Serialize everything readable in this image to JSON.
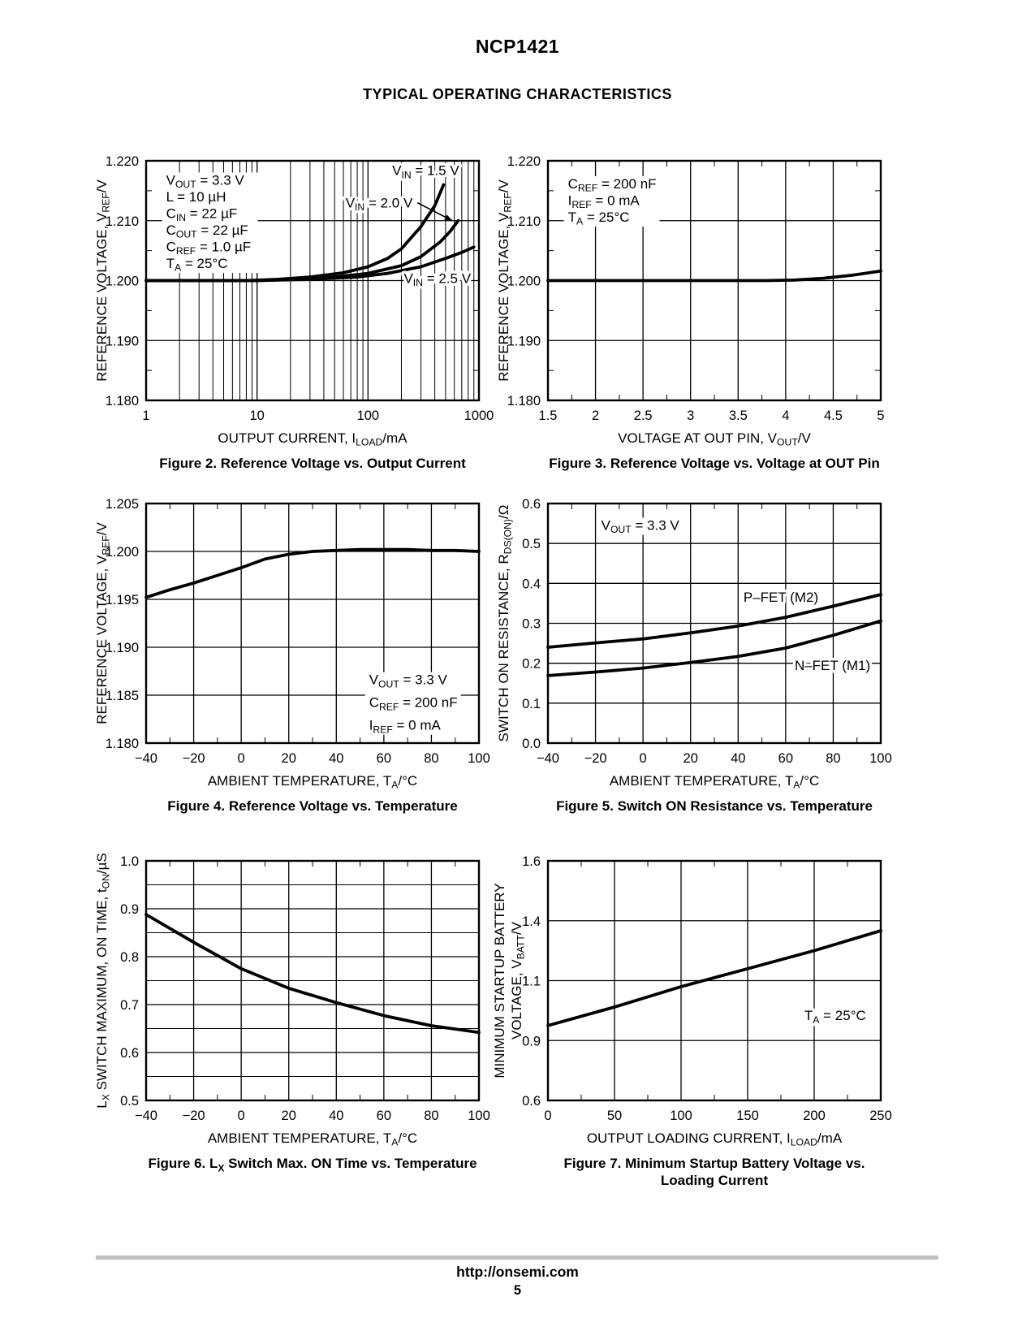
{
  "page": {
    "title": "NCP1421",
    "section_title": "TYPICAL OPERATING CHARACTERISTICS",
    "footer": {
      "url": "http://onsemi.com",
      "page_number": "5"
    }
  },
  "colors": {
    "ink": "#000000",
    "footer_bar": "#c0c0c0"
  },
  "chart_data": [
    {
      "id": "figure-2",
      "type": "line",
      "caption": "Figure 2. Reference Voltage vs. Output Current",
      "xlabel": "OUTPUT CURRENT, I~LOAD~/mA",
      "ylabel": [
        "REFERENCE VOLTAGE, V~REF~/V"
      ],
      "x_scale": "log",
      "x_ticks": [
        1,
        10,
        100,
        1000
      ],
      "x_tick_labels": [
        "1",
        "10",
        "100",
        "1000"
      ],
      "x_grid_minor": [
        2,
        3,
        4,
        5,
        6,
        7,
        8,
        9,
        20,
        30,
        40,
        50,
        60,
        70,
        80,
        90,
        200,
        300,
        400,
        500,
        600,
        700,
        800,
        900
      ],
      "y_ticks": [
        1.18,
        1.19,
        1.2,
        1.21,
        1.22
      ],
      "y_tick_labels": [
        "1.180",
        "1.190",
        "1.200",
        "1.210",
        "1.220"
      ],
      "y_minor_ticks": [
        1.185,
        1.195,
        1.205,
        1.215
      ],
      "annotation": {
        "x": 0.06,
        "y": 0.1,
        "line_h": 20.5,
        "lines": [
          "V~OUT~ = 3.3 V",
          "L = 10 µH",
          "C~IN~ = 22 µF",
          "C~OUT~ = 22 µF",
          "C~REF~ = 1.0 µF",
          "T~A~ = 25°C"
        ]
      },
      "series": [
        {
          "name": "VIN = 1.5 V",
          "points": [
            [
              1,
              1.2
            ],
            [
              8,
              1.2
            ],
            [
              15,
              1.2002
            ],
            [
              30,
              1.2006
            ],
            [
              60,
              1.2013
            ],
            [
              100,
              1.2023
            ],
            [
              150,
              1.2037
            ],
            [
              200,
              1.2053
            ],
            [
              300,
              1.209
            ],
            [
              400,
              1.2125
            ],
            [
              480,
              1.216
            ]
          ]
        },
        {
          "name": "VIN = 2.0 V",
          "points": [
            [
              1,
              1.2
            ],
            [
              10,
              1.2
            ],
            [
              20,
              1.2002
            ],
            [
              50,
              1.2006
            ],
            [
              100,
              1.2012
            ],
            [
              200,
              1.2025
            ],
            [
              300,
              1.204
            ],
            [
              450,
              1.2065
            ],
            [
              550,
              1.2082
            ],
            [
              650,
              1.21
            ]
          ]
        },
        {
          "name": "VIN = 2.5 V",
          "points": [
            [
              1,
              1.2
            ],
            [
              10,
              1.2
            ],
            [
              30,
              1.2002
            ],
            [
              80,
              1.2006
            ],
            [
              150,
              1.2012
            ],
            [
              300,
              1.2023
            ],
            [
              500,
              1.2037
            ],
            [
              700,
              1.2047
            ],
            [
              900,
              1.2056
            ]
          ]
        }
      ],
      "labels": [
        {
          "text": "V~IN~ = 1.5 V",
          "x": 0.84,
          "y": 0.06
        },
        {
          "text": "V~IN~ = 2.0 V",
          "x": 0.7,
          "y": 0.195,
          "arrow": [
            0.815,
            0.175,
            0.92,
            0.25
          ]
        },
        {
          "text": "V~IN~ = 2.5 V",
          "x": 0.875,
          "y": 0.51
        }
      ]
    },
    {
      "id": "figure-3",
      "type": "line",
      "caption": "Figure 3. Reference Voltage vs. Voltage at OUT Pin",
      "xlabel": "VOLTAGE AT OUT PIN, V~OUT~/V",
      "ylabel": [
        "REFERENCE VOLTAGE, V~REF~/V"
      ],
      "x_ticks": [
        1.5,
        2,
        2.5,
        3,
        3.5,
        4,
        4.5,
        5
      ],
      "x_tick_labels": [
        "1.5",
        "2",
        "2.5",
        "3",
        "3.5",
        "4",
        "4.5",
        "5"
      ],
      "x_minor_ticks": [
        1.75,
        2.25,
        2.75,
        3.25,
        3.75,
        4.25,
        4.75
      ],
      "y_ticks": [
        1.18,
        1.19,
        1.2,
        1.21,
        1.22
      ],
      "y_tick_labels": [
        "1.180",
        "1.190",
        "1.200",
        "1.210",
        "1.220"
      ],
      "y_minor_ticks": [
        1.185,
        1.195,
        1.205,
        1.215
      ],
      "annotation": {
        "x": 0.06,
        "y": 0.115,
        "line_h": 20.5,
        "lines": [
          "C~REF~ = 200 nF",
          "I~REF~ = 0 mA",
          "T~A~ = 25°C"
        ]
      },
      "series": [
        {
          "name": "VREF",
          "points": [
            [
              1.5,
              1.2
            ],
            [
              3.8,
              1.2
            ],
            [
              4.1,
              1.2001
            ],
            [
              4.4,
              1.2004
            ],
            [
              4.7,
              1.2009
            ],
            [
              5,
              1.2016
            ]
          ]
        }
      ],
      "labels": []
    },
    {
      "id": "figure-4",
      "type": "line",
      "caption": "Figure 4. Reference Voltage vs. Temperature",
      "xlabel": "AMBIENT TEMPERATURE, T~A~/°C",
      "ylabel": [
        "REFERENCE VOLTAGE, V~REF~/V"
      ],
      "x_ticks": [
        -40,
        -20,
        0,
        20,
        40,
        60,
        80,
        100
      ],
      "x_tick_labels": [
        "−40",
        "−20",
        "0",
        "20",
        "40",
        "60",
        "80",
        "100"
      ],
      "x_minor_ticks": [
        -30,
        -10,
        10,
        30,
        50,
        70,
        90
      ],
      "y_ticks": [
        1.18,
        1.185,
        1.19,
        1.195,
        1.2,
        1.205
      ],
      "y_tick_labels": [
        "1.180",
        "1.185",
        "1.190",
        "1.195",
        "1.200",
        "1.205"
      ],
      "annotation": {
        "x": 0.67,
        "y": 0.755,
        "line_h": 28,
        "lines": [
          "V~OUT~ = 3.3 V",
          "C~REF~ = 200 nF",
          "I~REF~ = 0 mA"
        ]
      },
      "series": [
        {
          "name": "VREF",
          "points": [
            [
              -40,
              1.1952
            ],
            [
              -30,
              1.196
            ],
            [
              -20,
              1.1967
            ],
            [
              -10,
              1.1975
            ],
            [
              0,
              1.1983
            ],
            [
              10,
              1.1992
            ],
            [
              20,
              1.1997
            ],
            [
              30,
              1.2
            ],
            [
              40,
              1.2001
            ],
            [
              50,
              1.2002
            ],
            [
              60,
              1.2002
            ],
            [
              70,
              1.2002
            ],
            [
              80,
              1.2001
            ],
            [
              90,
              1.2001
            ],
            [
              100,
              1.2
            ]
          ]
        }
      ],
      "labels": []
    },
    {
      "id": "figure-5",
      "type": "line",
      "caption": "Figure 5. Switch ON Resistance vs. Temperature",
      "xlabel": "AMBIENT TEMPERATURE, T~A~/°C",
      "ylabel": [
        "SWITCH ON RESISTANCE, R~DS(ON)~/Ω"
      ],
      "x_ticks": [
        -40,
        -20,
        0,
        20,
        40,
        60,
        80,
        100
      ],
      "x_tick_labels": [
        "−40",
        "−20",
        "0",
        "20",
        "40",
        "60",
        "80",
        "100"
      ],
      "x_minor_ticks": [
        -30,
        -10,
        10,
        30,
        50,
        70,
        90
      ],
      "y_ticks": [
        0.0,
        0.1,
        0.2,
        0.3,
        0.4,
        0.5,
        0.6
      ],
      "y_tick_labels": [
        "0.0",
        "0.1",
        "0.2",
        "0.3",
        "0.4",
        "0.5",
        "0.6"
      ],
      "annotation": {
        "x": 0.16,
        "y": 0.11,
        "line_h": 20.5,
        "lines": [
          "V~OUT~ = 3.3 V"
        ]
      },
      "series": [
        {
          "name": "P-FET (M2)",
          "points": [
            [
              -40,
              0.24
            ],
            [
              -20,
              0.251
            ],
            [
              0,
              0.261
            ],
            [
              20,
              0.276
            ],
            [
              40,
              0.293
            ],
            [
              60,
              0.315
            ],
            [
              80,
              0.343
            ],
            [
              100,
              0.372
            ]
          ]
        },
        {
          "name": "N-FET (M1)",
          "points": [
            [
              -40,
              0.169
            ],
            [
              -20,
              0.178
            ],
            [
              0,
              0.188
            ],
            [
              20,
              0.202
            ],
            [
              40,
              0.217
            ],
            [
              60,
              0.238
            ],
            [
              80,
              0.27
            ],
            [
              100,
              0.306
            ]
          ]
        }
      ],
      "labels": [
        {
          "text": "P–FET (M2)",
          "x": 0.7,
          "y": 0.41
        },
        {
          "text": "N–FET (M1)",
          "x": 0.855,
          "y": 0.695
        }
      ]
    },
    {
      "id": "figure-6",
      "type": "line",
      "caption": "Figure 6. L~X~ Switch Max. ON Time vs. Temperature",
      "xlabel": "AMBIENT TEMPERATURE, T~A~/°C",
      "ylabel": [
        "L~X~ SWITCH MAXIMUM, ON TIME, t~ON~/µS"
      ],
      "x_ticks": [
        -40,
        -20,
        0,
        20,
        40,
        60,
        80,
        100
      ],
      "x_tick_labels": [
        "−40",
        "−20",
        "0",
        "20",
        "40",
        "60",
        "80",
        "100"
      ],
      "x_minor_ticks": [
        -30,
        -10,
        10,
        30,
        50,
        70,
        90
      ],
      "y_ticks": [
        0.5,
        0.6,
        0.7,
        0.8,
        0.9,
        1.0
      ],
      "y_tick_labels": [
        "0.5",
        "0.6",
        "0.7",
        "0.8",
        "0.9",
        "1.0"
      ],
      "y_grid_minor": [
        0.55,
        0.65,
        0.75,
        0.85,
        0.95
      ],
      "series": [
        {
          "name": "tON max",
          "points": [
            [
              -40,
              0.888
            ],
            [
              -20,
              0.83
            ],
            [
              0,
              0.775
            ],
            [
              20,
              0.734
            ],
            [
              40,
              0.704
            ],
            [
              60,
              0.677
            ],
            [
              80,
              0.656
            ],
            [
              100,
              0.642
            ]
          ]
        }
      ],
      "labels": []
    },
    {
      "id": "figure-7",
      "type": "line",
      "caption": "Figure 7. Minimum Startup Battery Voltage vs.\nLoading Current",
      "xlabel": "OUTPUT LOADING CURRENT, I~LOAD~/mA",
      "ylabel": [
        "MINIMUM STARTUP BATTERY",
        "VOLTAGE, V~BATT~/V"
      ],
      "x_ticks": [
        0,
        50,
        100,
        150,
        200,
        250
      ],
      "x_tick_labels": [
        "0",
        "50",
        "100",
        "150",
        "200",
        "250"
      ],
      "x_minor_ticks": [
        25,
        75,
        125,
        175,
        225
      ],
      "y_ticks": [
        0.6,
        0.9,
        1.1,
        1.4,
        1.6
      ],
      "y_tick_labels": [
        "0.6",
        "0.9",
        "1.1",
        "1.4",
        "1.6"
      ],
      "series": [
        {
          "name": "VBATT min",
          "points": [
            [
              0,
              0.95
            ],
            [
              50,
              1.012
            ],
            [
              100,
              1.08
            ],
            [
              150,
              1.16
            ],
            [
              200,
              1.25
            ],
            [
              250,
              1.35
            ]
          ]
        }
      ],
      "labels": [
        {
          "text": "T~A~ = 25°C",
          "x": 0.863,
          "y": 0.665
        }
      ]
    }
  ]
}
